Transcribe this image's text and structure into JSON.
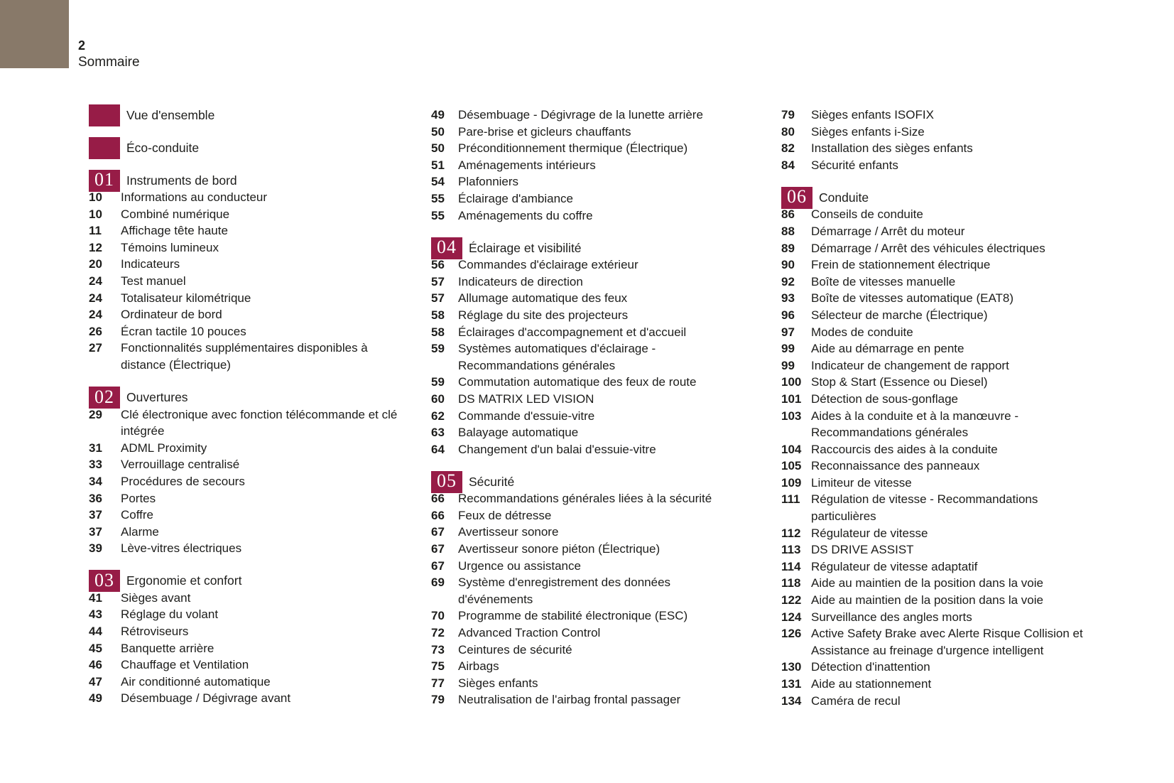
{
  "page": {
    "number": "2",
    "title": "Sommaire"
  },
  "colors": {
    "accent": "#971C47",
    "corner_swatch": "#887969",
    "text": "#1D1D1B",
    "background": "#FFFFFF"
  },
  "columns": [
    {
      "blocks": [
        {
          "type": "section",
          "badge": "",
          "label": "Vue d'ensemble"
        },
        {
          "type": "section",
          "badge": "",
          "label": "Éco-conduite"
        },
        {
          "type": "section",
          "badge": "01",
          "label": "Instruments de bord"
        },
        {
          "type": "entry",
          "page": "10",
          "label": "Informations au conducteur"
        },
        {
          "type": "entry",
          "page": "10",
          "label": "Combiné numérique"
        },
        {
          "type": "entry",
          "page": "11",
          "label": "Affichage tête haute"
        },
        {
          "type": "entry",
          "page": "12",
          "label": "Témoins lumineux"
        },
        {
          "type": "entry",
          "page": "20",
          "label": "Indicateurs"
        },
        {
          "type": "entry",
          "page": "24",
          "label": "Test manuel"
        },
        {
          "type": "entry",
          "page": "24",
          "label": "Totalisateur kilométrique"
        },
        {
          "type": "entry",
          "page": "24",
          "label": "Ordinateur de bord"
        },
        {
          "type": "entry",
          "page": "26",
          "label": "Écran tactile 10 pouces"
        },
        {
          "type": "entry",
          "page": "27",
          "label": "Fonctionnalités supplémentaires disponibles à distance (Électrique)"
        },
        {
          "type": "section",
          "badge": "02",
          "label": "Ouvertures"
        },
        {
          "type": "entry",
          "page": "29",
          "label": "Clé électronique avec fonction télécommande et clé intégrée"
        },
        {
          "type": "entry",
          "page": "31",
          "label": "ADML Proximity"
        },
        {
          "type": "entry",
          "page": "33",
          "label": "Verrouillage centralisé"
        },
        {
          "type": "entry",
          "page": "34",
          "label": "Procédures de secours"
        },
        {
          "type": "entry",
          "page": "36",
          "label": "Portes"
        },
        {
          "type": "entry",
          "page": "37",
          "label": "Coffre"
        },
        {
          "type": "entry",
          "page": "37",
          "label": "Alarme"
        },
        {
          "type": "entry",
          "page": "39",
          "label": "Lève-vitres électriques"
        },
        {
          "type": "section",
          "badge": "03",
          "label": "Ergonomie et confort"
        },
        {
          "type": "entry",
          "page": "41",
          "label": "Sièges avant"
        },
        {
          "type": "entry",
          "page": "43",
          "label": "Réglage du volant"
        },
        {
          "type": "entry",
          "page": "44",
          "label": "Rétroviseurs"
        },
        {
          "type": "entry",
          "page": "45",
          "label": "Banquette arrière"
        },
        {
          "type": "entry",
          "page": "46",
          "label": "Chauffage et Ventilation"
        },
        {
          "type": "entry",
          "page": "47",
          "label": "Air conditionné automatique"
        },
        {
          "type": "entry",
          "page": "49",
          "label": "Désembuage / Dégivrage avant"
        }
      ]
    },
    {
      "blocks": [
        {
          "type": "entry",
          "page": "49",
          "label": "Désembuage - Dégivrage de la lunette arrière"
        },
        {
          "type": "entry",
          "page": "50",
          "label": "Pare-brise et gicleurs chauffants"
        },
        {
          "type": "entry",
          "page": "50",
          "label": "Préconditionnement thermique (Électrique)"
        },
        {
          "type": "entry",
          "page": "51",
          "label": "Aménagements intérieurs"
        },
        {
          "type": "entry",
          "page": "54",
          "label": "Plafonniers"
        },
        {
          "type": "entry",
          "page": "55",
          "label": "Éclairage d'ambiance"
        },
        {
          "type": "entry",
          "page": "55",
          "label": "Aménagements du coffre"
        },
        {
          "type": "section",
          "badge": "04",
          "label": "Éclairage et visibilité"
        },
        {
          "type": "entry",
          "page": "56",
          "label": "Commandes d'éclairage extérieur"
        },
        {
          "type": "entry",
          "page": "57",
          "label": "Indicateurs de direction"
        },
        {
          "type": "entry",
          "page": "57",
          "label": "Allumage automatique des feux"
        },
        {
          "type": "entry",
          "page": "58",
          "label": "Réglage du site des projecteurs"
        },
        {
          "type": "entry",
          "page": "58",
          "label": "Éclairages d'accompagnement et d'accueil"
        },
        {
          "type": "entry",
          "page": "59",
          "label": "Systèmes automatiques d'éclairage - Recommandations générales"
        },
        {
          "type": "entry",
          "page": "59",
          "label": "Commutation automatique des feux de route"
        },
        {
          "type": "entry",
          "page": "60",
          "label": "DS MATRIX LED VISION"
        },
        {
          "type": "entry",
          "page": "62",
          "label": "Commande d'essuie-vitre"
        },
        {
          "type": "entry",
          "page": "63",
          "label": "Balayage automatique"
        },
        {
          "type": "entry",
          "page": "64",
          "label": "Changement d'un balai d'essuie-vitre"
        },
        {
          "type": "section",
          "badge": "05",
          "label": "Sécurité"
        },
        {
          "type": "entry",
          "page": "66",
          "label": "Recommandations générales liées à la sécurité"
        },
        {
          "type": "entry",
          "page": "66",
          "label": "Feux de détresse"
        },
        {
          "type": "entry",
          "page": "67",
          "label": "Avertisseur sonore"
        },
        {
          "type": "entry",
          "page": "67",
          "label": "Avertisseur sonore piéton (Électrique)"
        },
        {
          "type": "entry",
          "page": "67",
          "label": "Urgence ou assistance"
        },
        {
          "type": "entry",
          "page": "69",
          "label": "Système d'enregistrement des données d'événements"
        },
        {
          "type": "entry",
          "page": "70",
          "label": "Programme de stabilité électronique (ESC)"
        },
        {
          "type": "entry",
          "page": "72",
          "label": "Advanced Traction Control"
        },
        {
          "type": "entry",
          "page": "73",
          "label": "Ceintures de sécurité"
        },
        {
          "type": "entry",
          "page": "75",
          "label": "Airbags"
        },
        {
          "type": "entry",
          "page": "77",
          "label": "Sièges enfants"
        },
        {
          "type": "entry",
          "page": "79",
          "label": "Neutralisation de l'airbag frontal passager"
        }
      ]
    },
    {
      "blocks": [
        {
          "type": "entry",
          "page": "79",
          "label": "Sièges enfants ISOFIX"
        },
        {
          "type": "entry",
          "page": "80",
          "label": "Sièges enfants i-Size"
        },
        {
          "type": "entry",
          "page": "82",
          "label": "Installation des sièges enfants"
        },
        {
          "type": "entry",
          "page": "84",
          "label": "Sécurité enfants"
        },
        {
          "type": "section",
          "badge": "06",
          "label": "Conduite"
        },
        {
          "type": "entry",
          "page": "86",
          "label": "Conseils de conduite"
        },
        {
          "type": "entry",
          "page": "88",
          "label": "Démarrage / Arrêt du moteur"
        },
        {
          "type": "entry",
          "page": "89",
          "label": "Démarrage / Arrêt des véhicules électriques"
        },
        {
          "type": "entry",
          "page": "90",
          "label": "Frein de stationnement électrique"
        },
        {
          "type": "entry",
          "page": "92",
          "label": "Boîte de vitesses manuelle"
        },
        {
          "type": "entry",
          "page": "93",
          "label": "Boîte de vitesses automatique (EAT8)"
        },
        {
          "type": "entry",
          "page": "96",
          "label": "Sélecteur de marche (Électrique)"
        },
        {
          "type": "entry",
          "page": "97",
          "label": "Modes de conduite"
        },
        {
          "type": "entry",
          "page": "99",
          "label": "Aide au démarrage en pente"
        },
        {
          "type": "entry",
          "page": "99",
          "label": "Indicateur de changement de rapport"
        },
        {
          "type": "entry",
          "page": "100",
          "label": "Stop & Start (Essence ou Diesel)"
        },
        {
          "type": "entry",
          "page": "101",
          "label": "Détection de sous-gonflage"
        },
        {
          "type": "entry",
          "page": "103",
          "label": "Aides à la conduite et à la manœuvre - Recommandations générales"
        },
        {
          "type": "entry",
          "page": "104",
          "label": "Raccourcis des aides à la conduite"
        },
        {
          "type": "entry",
          "page": "105",
          "label": "Reconnaissance des panneaux"
        },
        {
          "type": "entry",
          "page": "109",
          "label": "Limiteur de vitesse"
        },
        {
          "type": "entry",
          "page": "111",
          "label": "Régulation de vitesse - Recommandations particulières"
        },
        {
          "type": "entry",
          "page": "112",
          "label": "Régulateur de vitesse"
        },
        {
          "type": "entry",
          "page": "113",
          "label": "DS DRIVE ASSIST"
        },
        {
          "type": "entry",
          "page": "114",
          "label": "Régulateur de vitesse adaptatif"
        },
        {
          "type": "entry",
          "page": "118",
          "label": "Aide au maintien de la position dans la voie"
        },
        {
          "type": "entry",
          "page": "122",
          "label": "Aide au maintien de la position dans la voie"
        },
        {
          "type": "entry",
          "page": "124",
          "label": "Surveillance des angles morts"
        },
        {
          "type": "entry",
          "page": "126",
          "label": "Active Safety Brake avec Alerte Risque Collision et Assistance au freinage d'urgence intelligent"
        },
        {
          "type": "entry",
          "page": "130",
          "label": "Détection d'inattention"
        },
        {
          "type": "entry",
          "page": "131",
          "label": "Aide au stationnement"
        },
        {
          "type": "entry",
          "page": "134",
          "label": "Caméra de recul"
        }
      ]
    }
  ]
}
